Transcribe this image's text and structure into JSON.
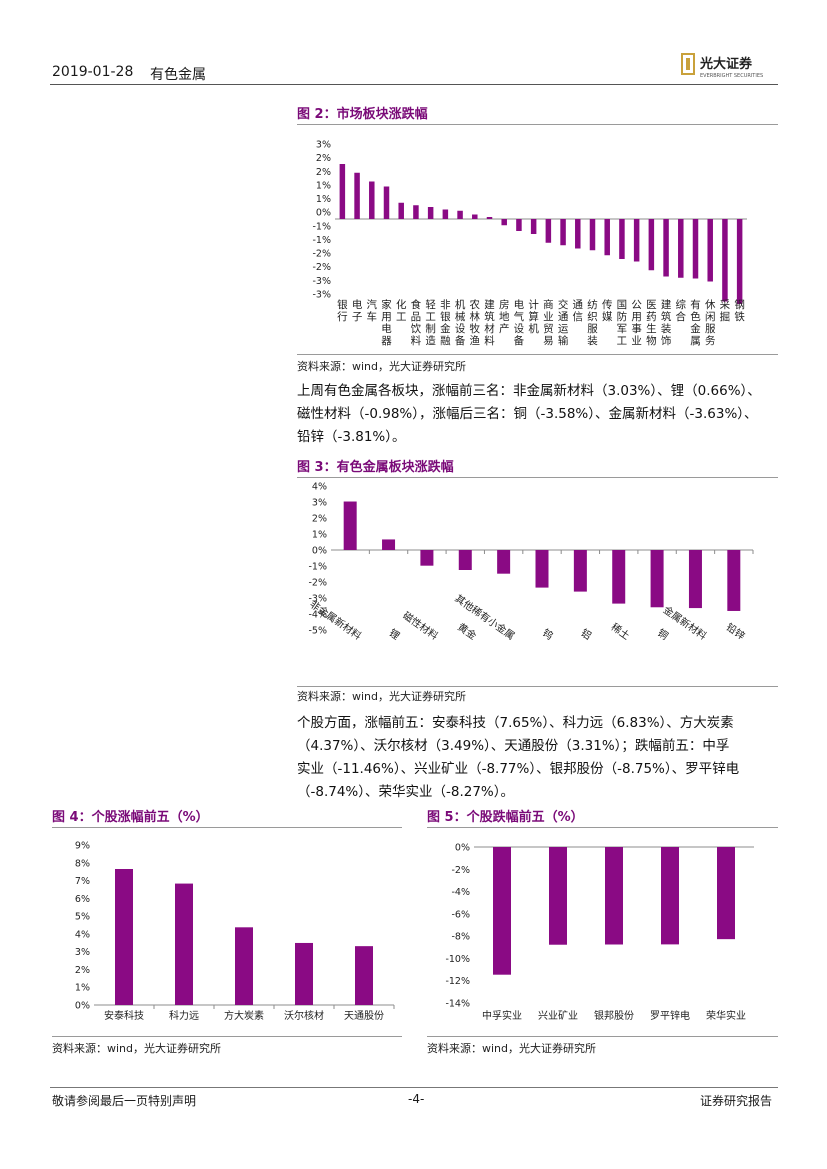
{
  "header": {
    "date": "2019-01-28",
    "sector": "有色金属"
  },
  "brand": {
    "name_cn": "光大证券",
    "name_en": "EVERBRIGHT SECURITIES",
    "accent": "#7a0a78",
    "bar": "#8a0a84",
    "gold": "#c9a13b"
  },
  "figure2": {
    "title": "图 2：市场板块涨跌幅",
    "source": "资料来源：wind，光大证券研究所",
    "chart_data": {
      "type": "bar",
      "title": "市场板块涨跌幅",
      "ylim": [
        -3,
        3
      ],
      "yticks": [
        "3%",
        "2%",
        "2%",
        "1%",
        "1%",
        "0%",
        "-1%",
        "-1%",
        "-2%",
        "-2%",
        "-3%",
        "-3%"
      ],
      "categories": [
        "银行",
        "电子",
        "汽车",
        "家用电器",
        "化工",
        "食品饮料",
        "轻工制造",
        "非银金融",
        "机械设备",
        "农林牧渔",
        "建筑材料",
        "房地产",
        "电气设备",
        "计算机",
        "商业贸易",
        "交通运输",
        "通信",
        "纺织服装",
        "传媒",
        "国防军工",
        "公用事业",
        "医药生物",
        "建筑装饰",
        "综合",
        "有色金属",
        "休闲服务",
        "采掘",
        "钢铁"
      ],
      "values": [
        2.2,
        1.85,
        1.5,
        1.3,
        0.65,
        0.55,
        0.48,
        0.38,
        0.33,
        0.18,
        0.08,
        -0.25,
        -0.48,
        -0.6,
        -0.95,
        -1.05,
        -1.18,
        -1.25,
        -1.45,
        -1.6,
        -1.7,
        -2.05,
        -2.3,
        -2.35,
        -2.38,
        -2.5,
        -3.3,
        -3.4
      ]
    }
  },
  "para1": {
    "lines": [
      "上周有色金属各板块，涨幅前三名：非金属新材料（3.03%）、锂（0.66%）、",
      "磁性材料（-0.98%），涨幅后三名：铜（-3.58%）、金属新材料（-3.63%）、",
      "铅锌（-3.81%）。"
    ]
  },
  "figure3": {
    "title": "图 3：有色金属板块涨跌幅",
    "source": "资料来源：wind，光大证券研究所",
    "chart_data": {
      "type": "bar",
      "title": "有色金属板块涨跌幅",
      "ylim": [
        -5,
        4
      ],
      "yticks": [
        "4%",
        "3%",
        "2%",
        "1%",
        "0%",
        "-1%",
        "-2%",
        "-3%",
        "-4%",
        "-5%"
      ],
      "categories": [
        "非金属新材料",
        "锂",
        "磁性材料",
        "黄金",
        "其他稀有小金属",
        "钨",
        "铝",
        "稀土",
        "铜",
        "金属新材料",
        "铅锌"
      ],
      "values": [
        3.03,
        0.66,
        -0.98,
        -1.25,
        -1.48,
        -2.35,
        -2.6,
        -3.35,
        -3.58,
        -3.63,
        -3.81
      ]
    }
  },
  "para2": {
    "lines": [
      "个股方面，涨幅前五：安泰科技（7.65%）、科力远（6.83%）、方大炭素",
      "（4.37%）、沃尔核材（3.49%）、天通股份（3.31%）；跌幅前五：中孚",
      "实业（-11.46%）、兴业矿业（-8.77%）、银邦股份（-8.75%）、罗平锌电",
      "（-8.74%）、荣华实业（-8.27%）。"
    ]
  },
  "figure4": {
    "title": "图 4：个股涨幅前五（%）",
    "source": "资料来源：wind，光大证券研究所",
    "chart_data": {
      "type": "bar",
      "title": "个股涨幅前五（%）",
      "ylim": [
        0,
        9
      ],
      "yticks": [
        "9%",
        "8%",
        "7%",
        "6%",
        "5%",
        "4%",
        "3%",
        "2%",
        "1%",
        "0%"
      ],
      "categories": [
        "安泰科技",
        "科力远",
        "方大炭素",
        "沃尔核材",
        "天通股份"
      ],
      "values": [
        7.65,
        6.83,
        4.37,
        3.49,
        3.31
      ]
    }
  },
  "figure5": {
    "title": "图 5：个股跌幅前五（%）",
    "source": "资料来源：wind，光大证券研究所",
    "chart_data": {
      "type": "bar",
      "title": "个股跌幅前五（%）",
      "ylim": [
        -14,
        0
      ],
      "yticks": [
        "0%",
        "-2%",
        "-4%",
        "-6%",
        "-8%",
        "-10%",
        "-12%",
        "-14%"
      ],
      "categories": [
        "中孚实业",
        "兴业矿业",
        "银邦股份",
        "罗平锌电",
        "荣华实业"
      ],
      "values": [
        -11.46,
        -8.77,
        -8.75,
        -8.74,
        -8.27
      ]
    }
  },
  "footer": {
    "disclaimer": "敬请参阅最后一页特别声明",
    "page": "-4-",
    "report_type": "证券研究报告"
  }
}
